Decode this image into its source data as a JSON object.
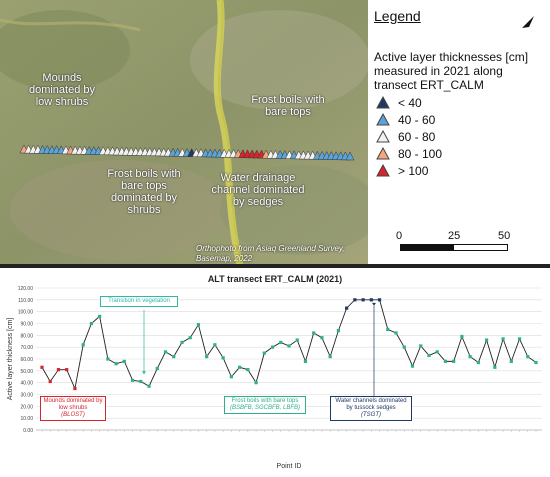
{
  "map": {
    "labels": [
      {
        "name": "mounds",
        "text": "Mounds dominated by low shrubs"
      },
      {
        "name": "frost-boils-bare",
        "text": "Frost boils with bare tops"
      },
      {
        "name": "frost-boils-shrubs",
        "text": "Frost boils with bare tops dominated by shrubs"
      },
      {
        "name": "water-drainage",
        "text": "Water drainage channel dominated by sedges"
      }
    ],
    "caption": "Orthophoto from Asiaq Greenland Survey, Basemap, 2022",
    "triangle_classes": [
      3,
      2,
      2,
      2,
      1,
      1,
      1,
      1,
      1,
      2,
      3,
      2,
      2,
      2,
      1,
      1,
      1,
      2,
      2,
      2,
      2,
      2,
      2,
      2,
      2,
      2,
      2,
      2,
      2,
      2,
      2,
      2,
      1,
      1,
      2,
      1,
      0,
      2,
      2,
      1,
      1,
      1,
      1,
      2,
      2,
      2,
      3,
      4,
      4,
      4,
      4,
      4,
      3,
      2,
      2,
      1,
      1,
      2,
      1,
      2,
      2,
      2,
      2,
      1,
      1,
      1,
      1,
      1,
      1,
      1,
      1
    ]
  },
  "legend": {
    "title": "Legend",
    "subtitle": "Active layer thicknesses [cm] measured in 2021 along transect ERT_CALM",
    "classes": [
      {
        "label": "< 40",
        "color": "#1f3864"
      },
      {
        "label": "40 - 60",
        "color": "#5ba3d9"
      },
      {
        "label": "60 - 80",
        "color": "#f2f2f2"
      },
      {
        "label": "80 - 100",
        "color": "#f4a582"
      },
      {
        "label": "> 100",
        "color": "#d6252b"
      }
    ],
    "scale": {
      "zero": "0",
      "mid": "25",
      "end": "50 m"
    }
  },
  "chart_data": {
    "type": "line",
    "title": "ALT transect ERT_CALM (2021)",
    "xlabel": "Point ID",
    "ylabel": "Active layer thickness [cm]",
    "ylim": [
      0,
      120
    ],
    "yticks": [
      "120.00",
      "110.00",
      "100.00",
      "90.00",
      "80.00",
      "70.00",
      "60.00",
      "50.00",
      "40.00",
      "30.00",
      "20.00",
      "10.00",
      "0.00"
    ],
    "y": [
      53,
      41,
      51,
      51,
      35,
      72,
      90,
      96,
      60,
      56,
      58,
      42,
      41,
      37,
      52,
      66,
      62,
      74,
      78,
      89,
      62,
      72,
      61,
      45,
      53,
      51,
      40,
      65,
      70,
      74,
      71,
      76,
      58,
      82,
      78,
      62,
      84,
      103,
      110,
      110,
      110,
      110,
      85,
      82,
      70,
      54,
      71,
      63,
      66,
      58,
      58,
      79,
      62,
      57,
      76,
      53,
      77,
      58,
      77,
      62,
      57
    ],
    "groups": [
      {
        "range": [
          0,
          4
        ],
        "color": "#d6252b"
      },
      {
        "range": [
          5,
          36
        ],
        "color": "#2eb08a"
      },
      {
        "range": [
          37,
          41
        ],
        "color": "#1f3864"
      },
      {
        "range": [
          42,
          60
        ],
        "color": "#2eb08a"
      }
    ],
    "annotations": [
      {
        "name": "transition-vegetation",
        "text": "Transition in vegetation",
        "color": "#2eb8a6"
      },
      {
        "name": "mounds-blost",
        "text": "Mounds dominated by low shrubs",
        "code": "(BLOST)",
        "color": "#d6252b"
      },
      {
        "name": "frost-boils",
        "text": "Frost boils with bare tops",
        "code": "(BSBFB, SGCBFB, LBFB)",
        "color": "#2eb08a"
      },
      {
        "name": "water-channels",
        "text": "Water channels dominated by tussock sedges",
        "code": "(TSGT)",
        "color": "#1f3864"
      }
    ]
  }
}
